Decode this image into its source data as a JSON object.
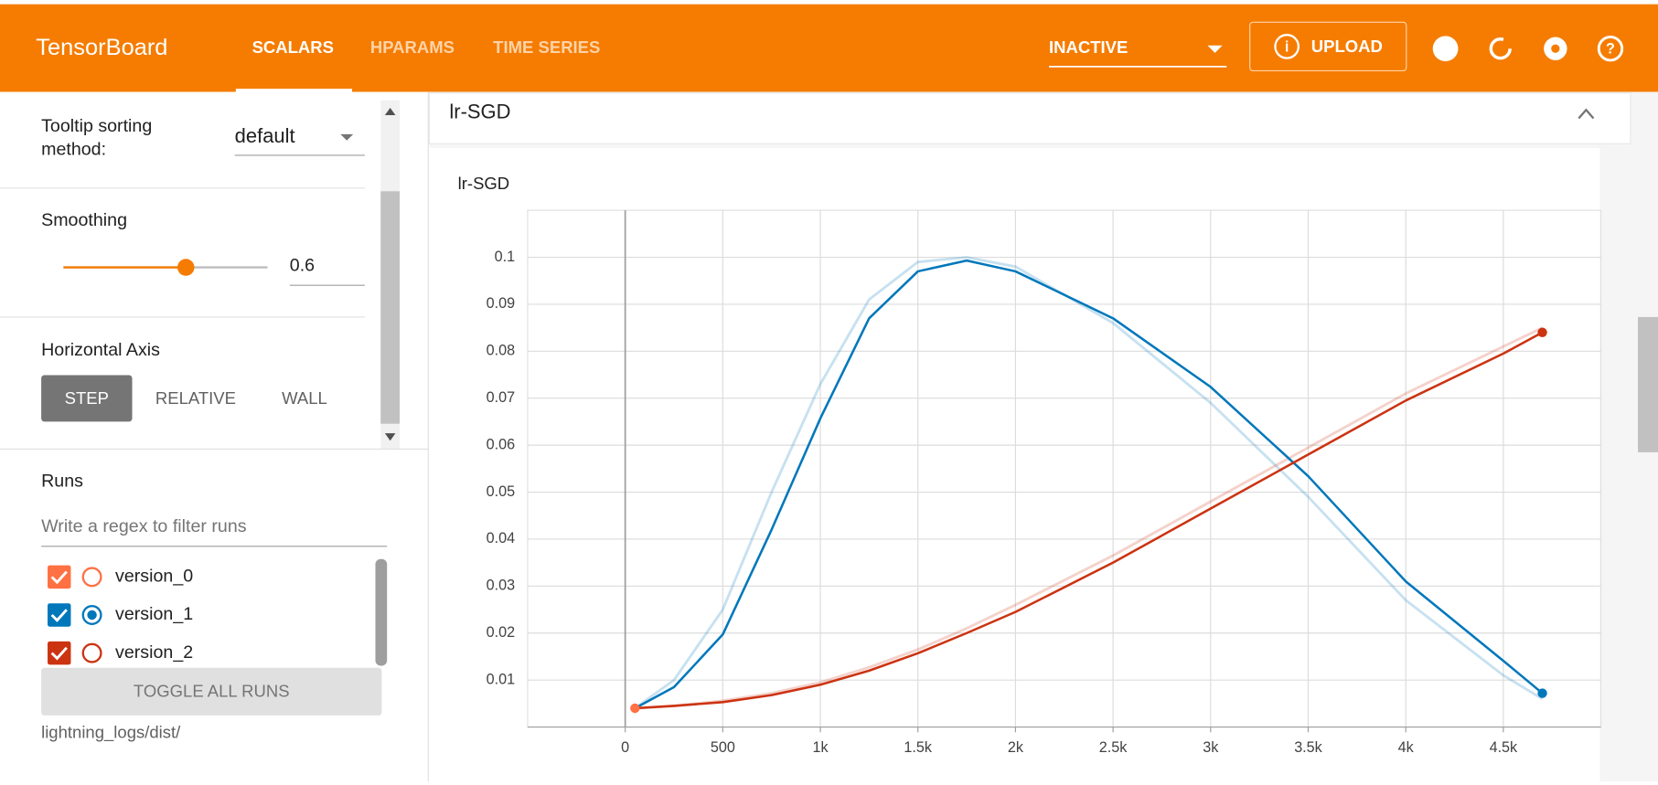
{
  "header": {
    "title": "TensorBoard",
    "tabs": [
      "SCALARS",
      "HPARAMS",
      "TIME SERIES"
    ],
    "status": "INACTIVE",
    "upload": "UPLOAD"
  },
  "sidebar": {
    "tooltip_label": [
      "Tooltip sorting",
      "method:"
    ],
    "tooltip_value": "default",
    "smoothing_label": "Smoothing",
    "smoothing_value": 0.6,
    "axis_label": "Horizontal Axis",
    "axis_buttons": [
      "STEP",
      "RELATIVE",
      "WALL"
    ],
    "runs_label": "Runs",
    "filter_placeholder": "Write a regex to filter runs",
    "runs": [
      "version_0",
      "version_1",
      "version_2"
    ],
    "toggle": "TOGGLE ALL RUNS",
    "log_dir": "lightning_logs/dist/"
  },
  "card_title": "lr-SGD",
  "chart_data": {
    "type": "line",
    "title": "lr-SGD",
    "x": [
      50,
      250,
      500,
      750,
      1000,
      1250,
      1500,
      1750,
      2000,
      2500,
      3000,
      3500,
      4000,
      4500,
      4700
    ],
    "xlim": [
      -500,
      5000
    ],
    "xticks": [
      0,
      500,
      {
        "value": 1000,
        "label": "1k"
      },
      {
        "value": 1500,
        "label": "1.5k"
      },
      {
        "value": 2000,
        "label": "2k"
      },
      {
        "value": 2500,
        "label": "2.5k"
      },
      {
        "value": 3000,
        "label": "3k"
      },
      {
        "value": 3500,
        "label": "3.5k"
      },
      {
        "value": 4000,
        "label": "4k"
      },
      {
        "value": 4500,
        "label": "4.5k"
      }
    ],
    "ylim": [
      0,
      0.11
    ],
    "yticks": [
      0.01,
      0.02,
      0.03,
      0.04,
      0.05,
      0.06,
      0.07,
      0.08,
      0.09,
      0.1
    ],
    "grid": true,
    "series": [
      {
        "name": "version_1",
        "color": "#0077bb",
        "values": [
          0.004,
          0.0085,
          0.0197,
          0.042,
          0.0657,
          0.087,
          0.097,
          0.0993,
          0.097,
          0.087,
          0.0724,
          0.0534,
          0.031,
          0.0141,
          0.0072
        ],
        "raw_values": [
          0.004,
          0.01,
          0.025,
          0.05,
          0.073,
          0.091,
          0.099,
          0.1,
          0.098,
          0.086,
          0.069,
          0.049,
          0.027,
          0.011,
          0.006
        ]
      },
      {
        "name": "version_2",
        "color": "#cc3311",
        "values": [
          0.004,
          0.0045,
          0.0053,
          0.0068,
          0.009,
          0.012,
          0.0157,
          0.02,
          0.0245,
          0.035,
          0.0465,
          0.058,
          0.0695,
          0.0795,
          0.084
        ],
        "raw_values": [
          0.004,
          0.0045,
          0.0056,
          0.0072,
          0.0095,
          0.0127,
          0.0165,
          0.021,
          0.026,
          0.0365,
          0.048,
          0.0595,
          0.071,
          0.081,
          0.085
        ]
      }
    ]
  }
}
